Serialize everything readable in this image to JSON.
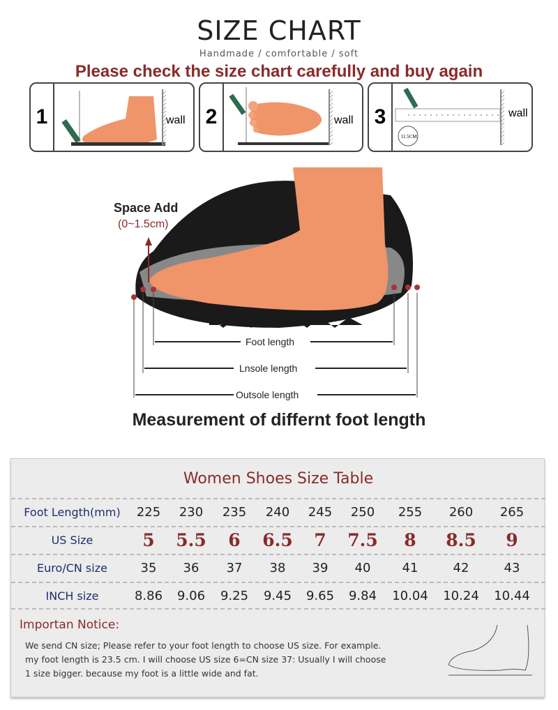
{
  "header": {
    "title": "SIZE CHART",
    "subtitle": "Handmade / comfortable / soft",
    "warning": "Please check the size chart carefully and buy again"
  },
  "steps": [
    {
      "number": "1",
      "wall": "wall"
    },
    {
      "number": "2",
      "wall": "wall"
    },
    {
      "number": "3",
      "wall": "wall",
      "ruler_label": "11.5CM"
    }
  ],
  "diagram": {
    "space_add": "Space Add",
    "space_range": "(0~1.5cm)",
    "foot_length": "Foot length",
    "insole_length": "Lnsole length",
    "outsole_length": "Outsole length",
    "caption": "Measurement of differnt foot length"
  },
  "table": {
    "title": "Women Shoes Size Table",
    "rows": [
      {
        "header": "Foot Length(mm)",
        "values": [
          "225",
          "230",
          "235",
          "240",
          "245",
          "250",
          "255",
          "260",
          "265"
        ]
      },
      {
        "header": "US Size",
        "values": [
          "5",
          "5.5",
          "6",
          "6.5",
          "7",
          "7.5",
          "8",
          "8.5",
          "9"
        ]
      },
      {
        "header": "Euro/CN size",
        "values": [
          "35",
          "36",
          "37",
          "38",
          "39",
          "40",
          "41",
          "42",
          "43"
        ]
      },
      {
        "header": "INCH size",
        "values": [
          "8.86",
          "9.06",
          "9.25",
          "9.45",
          "9.65",
          "9.84",
          "10.04",
          "10.24",
          "10.44"
        ]
      }
    ]
  },
  "notice": {
    "title": "Importan Notice:",
    "lines": [
      "We send CN size; Please refer to your foot length to choose US size. For example.",
      "my foot length is 23.5 cm.  I will choose US size 6=CN size 37: Usually I will choose",
      "1 size bigger.  because my foot is a little wide and fat."
    ]
  },
  "colors": {
    "accent": "#8a2a2a",
    "foot": "#f0946a",
    "header_text": "#1f2f6a",
    "table_bg": "#ececec"
  }
}
